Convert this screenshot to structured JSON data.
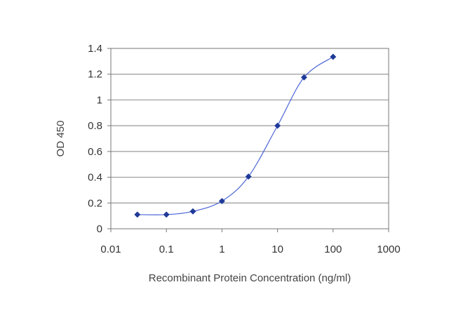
{
  "chart_data": {
    "type": "scatter",
    "title": "",
    "xlabel": "Recombinant Protein Concentration (ng/ml)",
    "ylabel": "OD 450",
    "x_scale": "log",
    "xlim": [
      0.01,
      1000
    ],
    "ylim": [
      0,
      1.4
    ],
    "x_ticks": [
      "0.01",
      "0.1",
      "1",
      "10",
      "100",
      "1000"
    ],
    "y_ticks": [
      "0",
      "0.2",
      "0.4",
      "0.6",
      "0.8",
      "1",
      "1.2",
      "1.4"
    ],
    "grid": "horizontal",
    "legend": "none",
    "colors": {
      "series": "#1f3a99",
      "curve": "#4a64d6",
      "grid": "#999999",
      "axis": "#777777"
    },
    "series": [
      {
        "x": [
          0.03,
          0.1,
          0.3,
          1,
          3,
          10,
          30,
          100
        ],
        "y": [
          0.11,
          0.11,
          0.135,
          0.215,
          0.405,
          0.8,
          1.175,
          1.335
        ]
      }
    ]
  }
}
